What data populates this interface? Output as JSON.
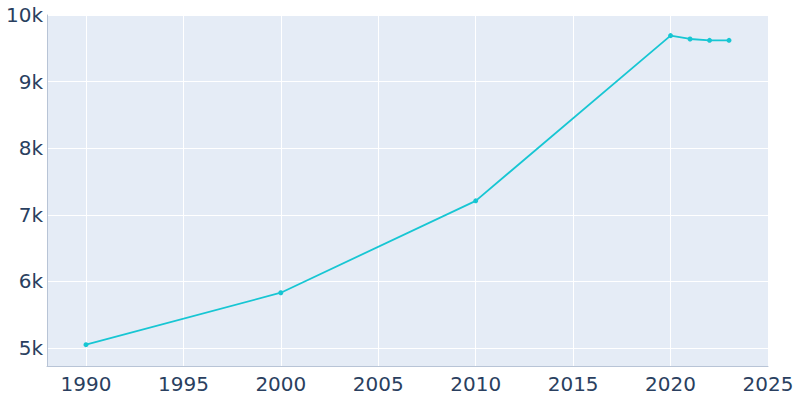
{
  "chart_data": {
    "type": "line",
    "x": [
      1990,
      2000,
      2010,
      2020,
      2021,
      2022,
      2023
    ],
    "values": [
      5050,
      5830,
      7210,
      9690,
      9640,
      9620,
      9620
    ],
    "color": "#17c6d3",
    "marker": "circle",
    "xlim": [
      1988,
      2025
    ],
    "xticks": [
      1990,
      1995,
      2000,
      2005,
      2010,
      2015,
      2020,
      2025
    ],
    "ylim": [
      4730,
      10000
    ],
    "yticks": [
      {
        "value": 5000,
        "label": "5k"
      },
      {
        "value": 6000,
        "label": "6k"
      },
      {
        "value": 7000,
        "label": "7k"
      },
      {
        "value": 8000,
        "label": "8k"
      },
      {
        "value": 9000,
        "label": "9k"
      },
      {
        "value": 10000,
        "label": "10k"
      }
    ],
    "grid": true
  }
}
